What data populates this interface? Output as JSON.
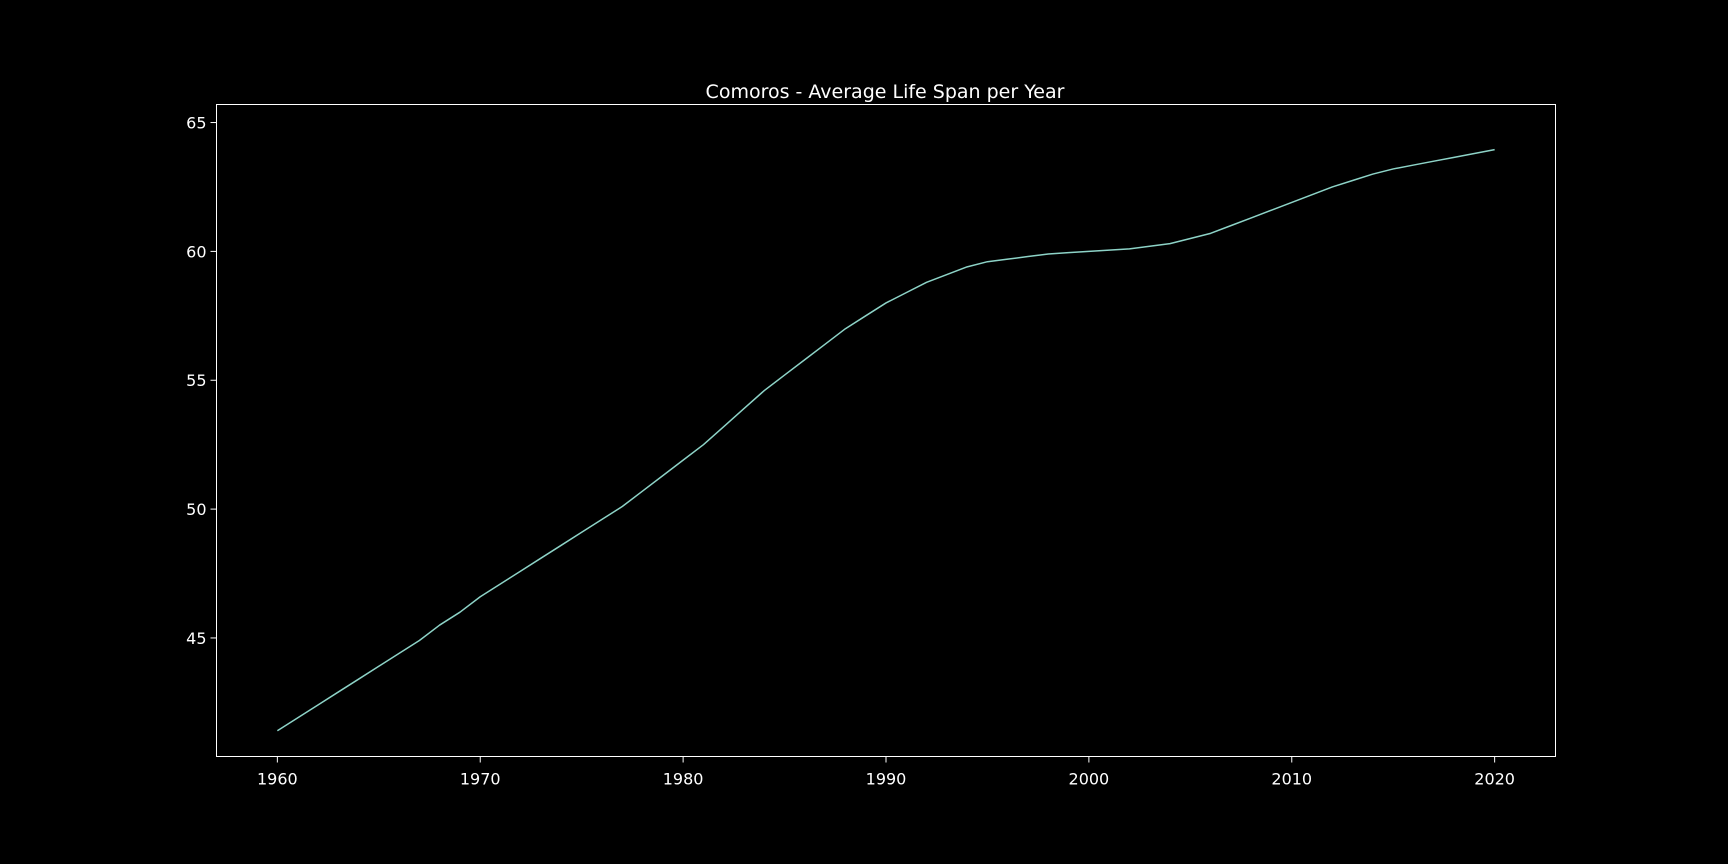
{
  "colors": {
    "background": "#000000",
    "axes": "#ffffff",
    "line": "#8dd3c7",
    "text": "#ffffff"
  },
  "chart_data": {
    "type": "line",
    "title": "Comoros - Average Life Span per Year",
    "xlabel": "",
    "ylabel": "",
    "xlim": [
      1957,
      2023
    ],
    "ylim": [
      40.4,
      65.7
    ],
    "x_ticks": [
      1960,
      1970,
      1980,
      1990,
      2000,
      2010,
      2020
    ],
    "y_ticks": [
      45,
      50,
      55,
      60,
      65
    ],
    "grid": false,
    "series": [
      {
        "x": [
          1960,
          1961,
          1962,
          1963,
          1964,
          1965,
          1966,
          1967,
          1968,
          1969,
          1970,
          1971,
          1972,
          1973,
          1974,
          1975,
          1976,
          1977,
          1978,
          1979,
          1980,
          1981,
          1982,
          1983,
          1984,
          1985,
          1986,
          1987,
          1988,
          1989,
          1990,
          1991,
          1992,
          1993,
          1994,
          1995,
          1996,
          1997,
          1998,
          1999,
          2000,
          2001,
          2002,
          2003,
          2004,
          2005,
          2006,
          2007,
          2008,
          2009,
          2010,
          2011,
          2012,
          2013,
          2014,
          2015,
          2016,
          2017,
          2018,
          2019,
          2020
        ],
        "y": [
          41.4,
          41.9,
          42.4,
          42.9,
          43.4,
          43.9,
          44.4,
          44.9,
          45.5,
          46.0,
          46.6,
          47.1,
          47.6,
          48.1,
          48.6,
          49.1,
          49.6,
          50.1,
          50.7,
          51.3,
          51.9,
          52.5,
          53.2,
          53.9,
          54.6,
          55.2,
          55.8,
          56.4,
          57.0,
          57.5,
          58.0,
          58.4,
          58.8,
          59.1,
          59.4,
          59.6,
          59.7,
          59.8,
          59.9,
          59.95,
          60.0,
          60.05,
          60.1,
          60.2,
          60.3,
          60.5,
          60.7,
          61.0,
          61.3,
          61.6,
          61.9,
          62.2,
          62.5,
          62.75,
          63.0,
          63.2,
          63.35,
          63.5,
          63.65,
          63.8,
          63.95
        ]
      }
    ]
  }
}
